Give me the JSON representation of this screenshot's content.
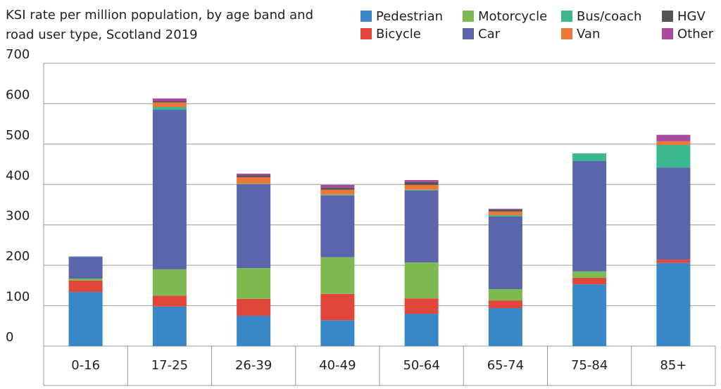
{
  "chart_data": {
    "type": "bar",
    "stacked": true,
    "title": "KSI rate per million population, by age band and road user type, Scotland 2019",
    "categories": [
      "0-16",
      "17-25",
      "26-39",
      "40-49",
      "50-64",
      "65-74",
      "75-84",
      "85+"
    ],
    "series": [
      {
        "name": "Pedestrian",
        "color": "#3a87c8",
        "values": [
          134,
          98,
          75,
          64,
          80,
          94,
          153,
          206
        ]
      },
      {
        "name": "Bicycle",
        "color": "#e2453a",
        "values": [
          28,
          27,
          42,
          65,
          38,
          19,
          16,
          8
        ]
      },
      {
        "name": "Motorcycle",
        "color": "#7dbb52",
        "values": [
          5,
          65,
          76,
          91,
          89,
          28,
          16,
          0
        ]
      },
      {
        "name": "Car",
        "color": "#5b65ab",
        "values": [
          54,
          395,
          208,
          153,
          178,
          180,
          273,
          228
        ]
      },
      {
        "name": "Bus/coach",
        "color": "#3bb88f",
        "values": [
          1,
          7,
          1,
          2,
          2,
          3,
          19,
          56
        ]
      },
      {
        "name": "Van",
        "color": "#ee7636",
        "values": [
          0,
          11,
          16,
          12,
          12,
          9,
          0,
          9
        ]
      },
      {
        "name": "HGV",
        "color": "#555555",
        "values": [
          0,
          3,
          5,
          5,
          7,
          5,
          0,
          0
        ]
      },
      {
        "name": "Other",
        "color": "#a84a9e",
        "values": [
          0,
          7,
          4,
          7,
          5,
          2,
          0,
          16
        ]
      }
    ],
    "ylim": [
      0,
      700
    ],
    "yticks": [
      0,
      100,
      200,
      300,
      400,
      500,
      600,
      700
    ],
    "grid": true
  }
}
